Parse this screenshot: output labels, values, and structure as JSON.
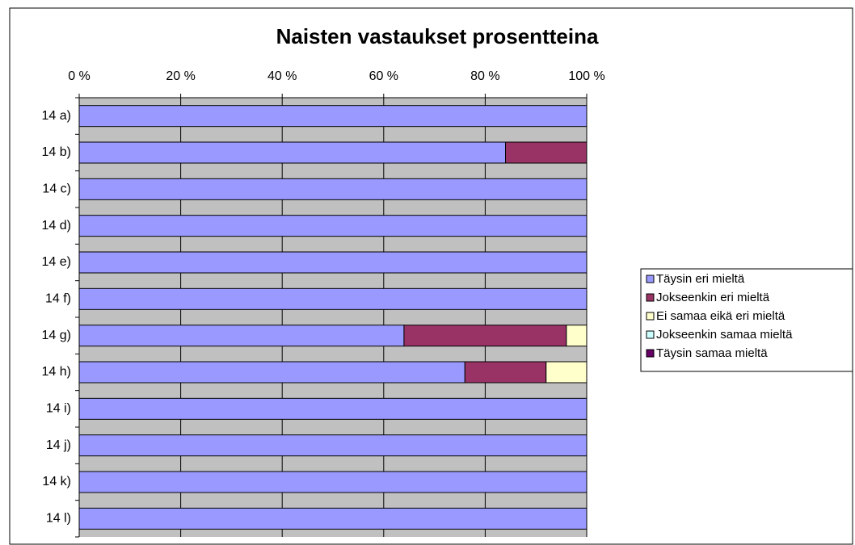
{
  "chart_data": {
    "type": "bar",
    "orientation": "horizontal",
    "stacked": true,
    "title": "Naisten vastaukset prosentteina",
    "categories": [
      "14 a)",
      "14 b)",
      "14 c)",
      "14 d)",
      "14 e)",
      "14 f)",
      "14 g)",
      "14 h)",
      "14 i)",
      "14 j)",
      "14 k)",
      "14 l)"
    ],
    "series": [
      {
        "name": "Täysin eri mieltä",
        "color": "#9999ff",
        "values": [
          100,
          84,
          100,
          100,
          100,
          100,
          64,
          76,
          100,
          100,
          100,
          100
        ]
      },
      {
        "name": "Jokseenkin eri mieltä",
        "color": "#993366",
        "values": [
          0,
          16,
          0,
          0,
          0,
          0,
          32,
          16,
          0,
          0,
          0,
          0
        ]
      },
      {
        "name": "Ei samaa eikä eri mieltä",
        "color": "#ffffcc",
        "values": [
          0,
          0,
          0,
          0,
          0,
          0,
          4,
          8,
          0,
          0,
          0,
          0
        ]
      },
      {
        "name": "Jokseenkin samaa mieltä",
        "color": "#ccffff",
        "values": [
          0,
          0,
          0,
          0,
          0,
          0,
          0,
          0,
          0,
          0,
          0,
          0
        ]
      },
      {
        "name": "Täysin samaa mieltä",
        "color": "#660066",
        "values": [
          0,
          0,
          0,
          0,
          0,
          0,
          0,
          0,
          0,
          0,
          0,
          0
        ]
      }
    ],
    "xlim": [
      0,
      100
    ],
    "xticks": [
      {
        "value": 0,
        "label": "0 %"
      },
      {
        "value": 20,
        "label": "20 %"
      },
      {
        "value": 40,
        "label": "40 %"
      },
      {
        "value": 60,
        "label": "60 %"
      },
      {
        "value": 80,
        "label": "80 %"
      },
      {
        "value": 100,
        "label": "100 %"
      }
    ],
    "grid": true,
    "legend": "right"
  }
}
